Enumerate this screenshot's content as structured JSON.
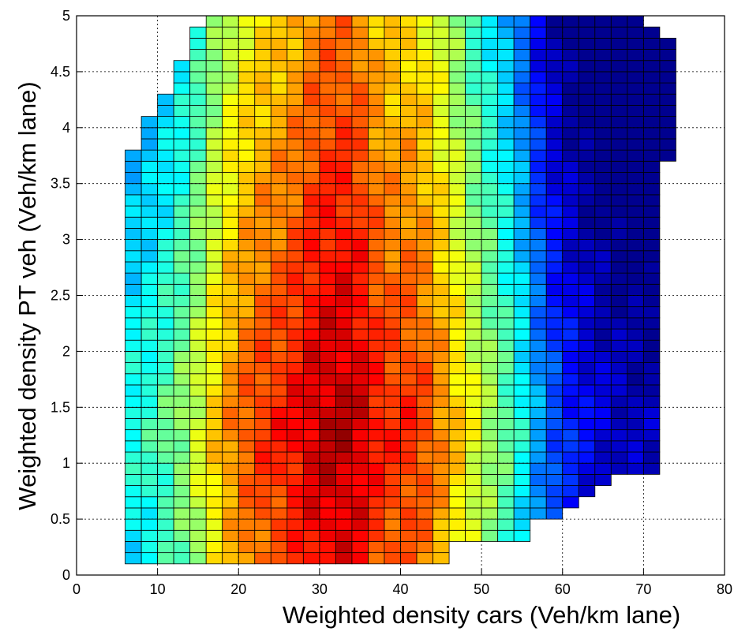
{
  "chart_data": {
    "type": "heatmap",
    "title": "",
    "xlabel": "Weighted density cars (Veh/km lane)",
    "ylabel": "Weighted density PT veh (Veh/km lane)",
    "xlim": [
      0,
      80
    ],
    "ylim": [
      0,
      5
    ],
    "x_ticks": [
      "0",
      "10",
      "20",
      "30",
      "40",
      "50",
      "60",
      "70",
      "80"
    ],
    "y_ticks": [
      "0",
      "0.5",
      "1",
      "1.5",
      "2",
      "2.5",
      "3",
      "3.5",
      "4",
      "4.5",
      "5"
    ],
    "grid": true,
    "colormap": "jet",
    "colormap_stops": [
      "#00008F",
      "#0000FF",
      "#00FFFF",
      "#FFFF00",
      "#FF0000",
      "#800000"
    ],
    "cell_width": 2,
    "cell_height": 0.1,
    "extent_rows": [
      {
        "y_from": 0.1,
        "y_to": 0.3,
        "x_from": 6,
        "x_to": 45
      },
      {
        "y_from": 0.3,
        "y_to": 0.5,
        "x_from": 6,
        "x_to": 55
      },
      {
        "y_from": 0.5,
        "y_to": 0.6,
        "x_from": 6,
        "x_to": 59
      },
      {
        "y_from": 0.6,
        "y_to": 0.7,
        "x_from": 6,
        "x_to": 61
      },
      {
        "y_from": 0.7,
        "y_to": 0.8,
        "x_from": 6,
        "x_to": 63
      },
      {
        "y_from": 0.8,
        "y_to": 0.9,
        "x_from": 6,
        "x_to": 65
      },
      {
        "y_from": 0.9,
        "y_to": 3.7,
        "x_from": 6,
        "x_to": 71
      },
      {
        "y_from": 3.7,
        "y_to": 3.8,
        "x_from": 6,
        "x_to": 73
      },
      {
        "y_from": 3.8,
        "y_to": 4.1,
        "x_from": 8,
        "x_to": 73
      },
      {
        "y_from": 4.1,
        "y_to": 4.3,
        "x_from": 10,
        "x_to": 73
      },
      {
        "y_from": 4.3,
        "y_to": 4.6,
        "x_from": 12,
        "x_to": 73
      },
      {
        "y_from": 4.6,
        "y_to": 4.8,
        "x_from": 14,
        "x_to": 73
      },
      {
        "y_from": 4.8,
        "y_to": 4.9,
        "x_from": 14,
        "x_to": 71
      },
      {
        "y_from": 4.9,
        "y_to": 5.0,
        "x_from": 16,
        "x_to": 69
      }
    ],
    "value_profile_x": [
      [
        6,
        0.4
      ],
      [
        10,
        0.45
      ],
      [
        14,
        0.55
      ],
      [
        18,
        0.72
      ],
      [
        22,
        0.82
      ],
      [
        26,
        0.86
      ],
      [
        30,
        0.94
      ],
      [
        34,
        0.95
      ],
      [
        38,
        0.84
      ],
      [
        42,
        0.84
      ],
      [
        46,
        0.72
      ],
      [
        50,
        0.58
      ],
      [
        54,
        0.45
      ],
      [
        58,
        0.24
      ],
      [
        62,
        0.14
      ],
      [
        66,
        0.08
      ],
      [
        73,
        0.04
      ]
    ],
    "value_y_peak": 1.3,
    "value_y_falloff": 0.1,
    "value_scale": "relative 0-1 (blue low, dark red high)"
  }
}
